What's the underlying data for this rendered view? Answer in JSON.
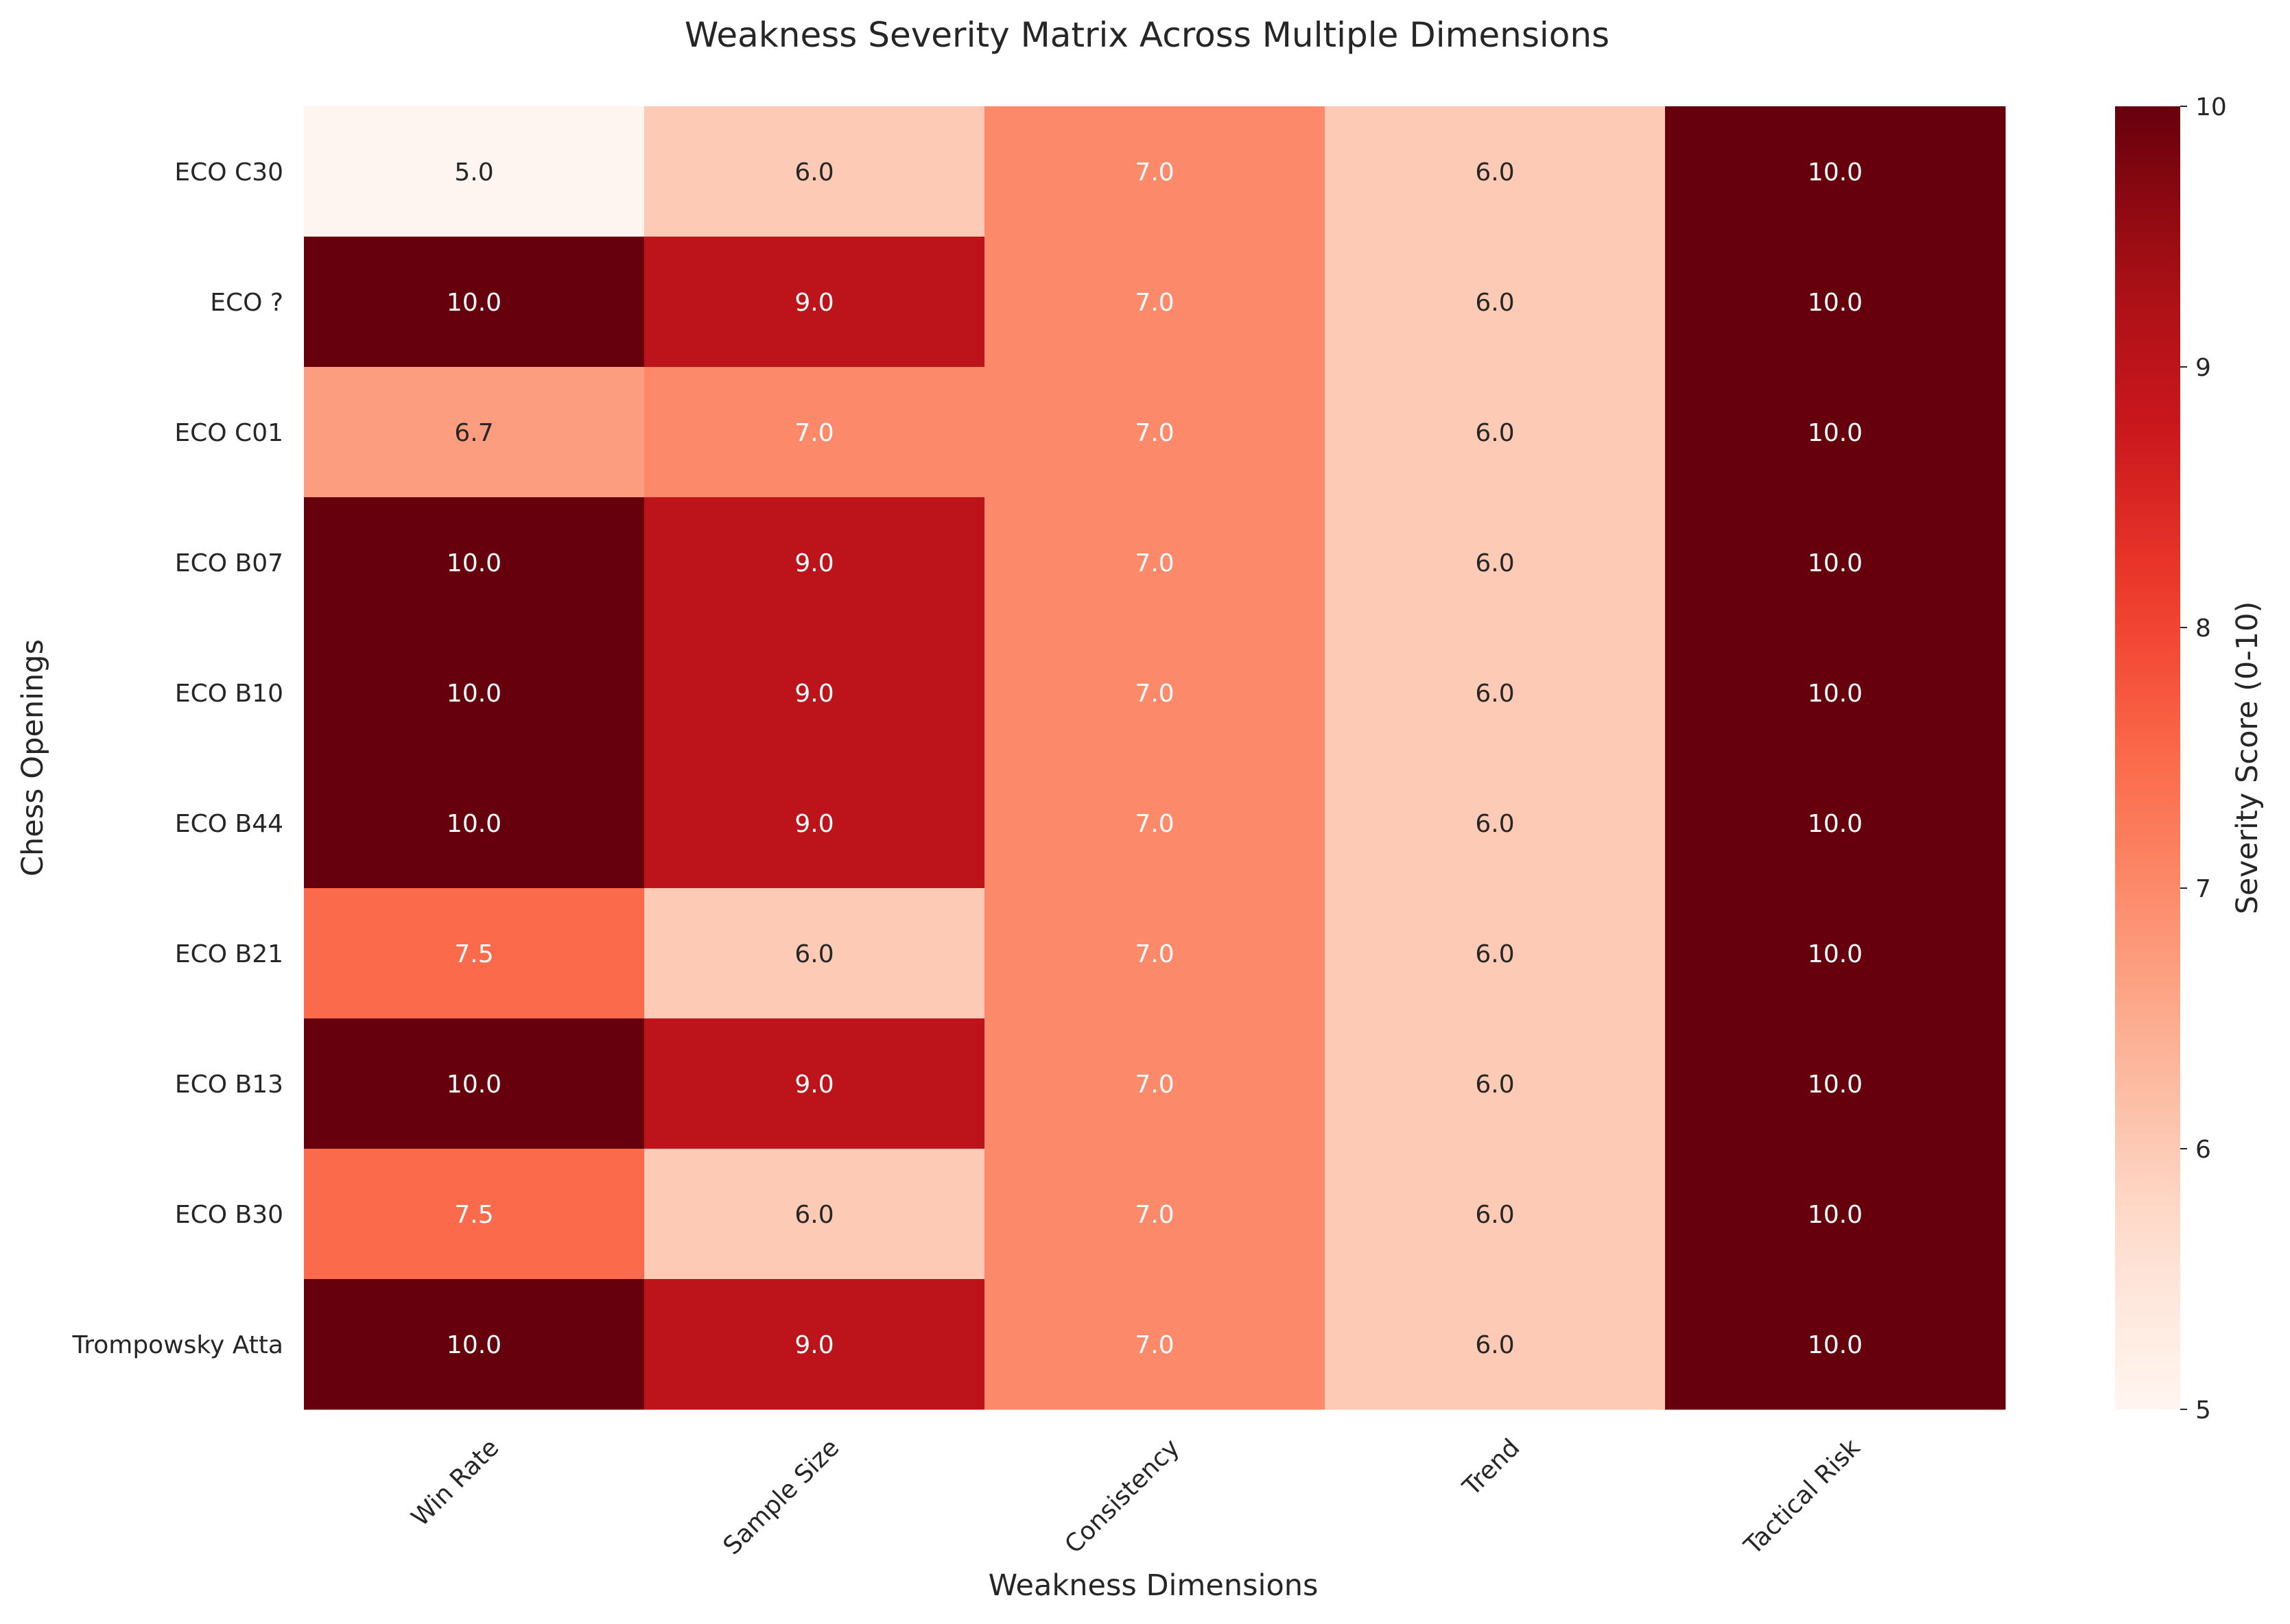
{
  "chart_data": {
    "type": "heatmap",
    "title": "Weakness Severity Matrix Across Multiple Dimensions",
    "xlabel": "Weakness Dimensions",
    "ylabel": "Chess Openings",
    "colorbar_label": "Severity Score (0-10)",
    "color_range": [
      5,
      10
    ],
    "colorbar_ticks": [
      "5",
      "6",
      "7",
      "8",
      "9",
      "10"
    ],
    "colormap": "Reds",
    "columns": [
      "Win Rate",
      "Sample Size",
      "Consistency",
      "Trend",
      "Tactical Risk"
    ],
    "rows": [
      "ECO C30",
      "ECO ?",
      "ECO C01",
      "ECO B07",
      "ECO B10",
      "ECO B44",
      "ECO B21",
      "ECO B13",
      "ECO B30",
      "Trompowsky Atta"
    ],
    "values": [
      [
        5.0,
        6.0,
        7.0,
        6.0,
        10.0
      ],
      [
        10.0,
        9.0,
        7.0,
        6.0,
        10.0
      ],
      [
        6.7,
        7.0,
        7.0,
        6.0,
        10.0
      ],
      [
        10.0,
        9.0,
        7.0,
        6.0,
        10.0
      ],
      [
        10.0,
        9.0,
        7.0,
        6.0,
        10.0
      ],
      [
        10.0,
        9.0,
        7.0,
        6.0,
        10.0
      ],
      [
        7.5,
        6.0,
        7.0,
        6.0,
        10.0
      ],
      [
        10.0,
        9.0,
        7.0,
        6.0,
        10.0
      ],
      [
        7.5,
        6.0,
        7.0,
        6.0,
        10.0
      ],
      [
        10.0,
        9.0,
        7.0,
        6.0,
        10.0
      ]
    ],
    "cell_labels": [
      [
        "5.0",
        "6.0",
        "7.0",
        "6.0",
        "10.0"
      ],
      [
        "10.0",
        "9.0",
        "7.0",
        "6.0",
        "10.0"
      ],
      [
        "6.7",
        "7.0",
        "7.0",
        "6.0",
        "10.0"
      ],
      [
        "10.0",
        "9.0",
        "7.0",
        "6.0",
        "10.0"
      ],
      [
        "10.0",
        "9.0",
        "7.0",
        "6.0",
        "10.0"
      ],
      [
        "10.0",
        "9.0",
        "7.0",
        "6.0",
        "10.0"
      ],
      [
        "7.5",
        "6.0",
        "7.0",
        "6.0",
        "10.0"
      ],
      [
        "10.0",
        "9.0",
        "7.0",
        "6.0",
        "10.0"
      ],
      [
        "7.5",
        "6.0",
        "7.0",
        "6.0",
        "10.0"
      ],
      [
        "10.0",
        "9.0",
        "7.0",
        "6.0",
        "10.0"
      ]
    ],
    "grid": false,
    "colorbar_position": "right"
  }
}
